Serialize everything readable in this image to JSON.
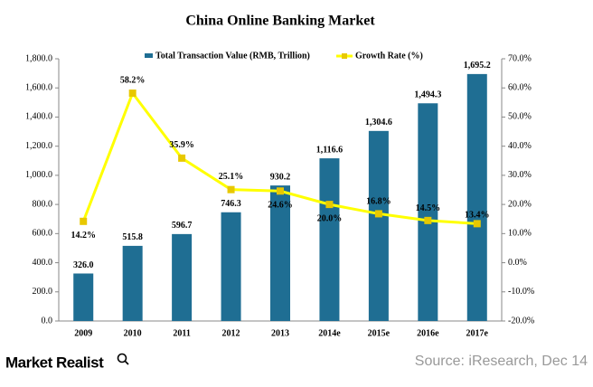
{
  "chart_data": {
    "type": "bar-line",
    "title": "China Online Banking Market",
    "categories": [
      "2009",
      "2010",
      "2011",
      "2012",
      "2013",
      "2014e",
      "2015e",
      "2016e",
      "2017e"
    ],
    "series": [
      {
        "name": "Total Transaction Value (RMB, Trillion)",
        "type": "bar",
        "color": "#1f6e93",
        "values": [
          326.0,
          515.8,
          596.7,
          746.3,
          930.2,
          1116.6,
          1304.6,
          1494.3,
          1695.2
        ],
        "value_labels": [
          "326.0",
          "515.8",
          "596.7",
          "746.3",
          "930.2",
          "1,116.6",
          "1,304.6",
          "1,494.3",
          "1,695.2"
        ]
      },
      {
        "name": "Growth Rate (%)",
        "type": "line",
        "axis": "y2",
        "color": "#ffff00",
        "values": [
          14.2,
          58.2,
          35.9,
          25.1,
          24.6,
          20.0,
          16.8,
          14.5,
          13.4
        ],
        "value_labels": [
          "14.2%",
          "58.2%",
          "35.9%",
          "25.1%",
          "24.6%",
          "20.0%",
          "16.8%",
          "14.5%",
          "13.4%"
        ]
      }
    ],
    "ylim": [
      0,
      1800
    ],
    "yticks": [
      {
        "value": 0,
        "label": "0.0"
      },
      {
        "value": 200,
        "label": "200.0"
      },
      {
        "value": 400,
        "label": "400.0"
      },
      {
        "value": 600,
        "label": "600.0"
      },
      {
        "value": 800,
        "label": "800.0"
      },
      {
        "value": 1000,
        "label": "1,000.0"
      },
      {
        "value": 1200,
        "label": "1,200.0"
      },
      {
        "value": 1400,
        "label": "1,400.0"
      },
      {
        "value": 1600,
        "label": "1,600.0"
      },
      {
        "value": 1800,
        "label": "1,800.0"
      }
    ],
    "y2lim": [
      -20,
      70
    ],
    "y2ticks": [
      {
        "value": -20,
        "label": "-20.0%"
      },
      {
        "value": -10,
        "label": "-10.0%"
      },
      {
        "value": 0,
        "label": "0.0%"
      },
      {
        "value": 10,
        "label": "10.0%"
      },
      {
        "value": 20,
        "label": "20.0%"
      },
      {
        "value": 30,
        "label": "30.0%"
      },
      {
        "value": 40,
        "label": "40.0%"
      },
      {
        "value": 50,
        "label": "50.0%"
      },
      {
        "value": 60,
        "label": "60.0%"
      },
      {
        "value": 70,
        "label": "70.0%"
      }
    ],
    "brand": "Market Realist",
    "source": "Source: iResearch, Dec 14"
  }
}
